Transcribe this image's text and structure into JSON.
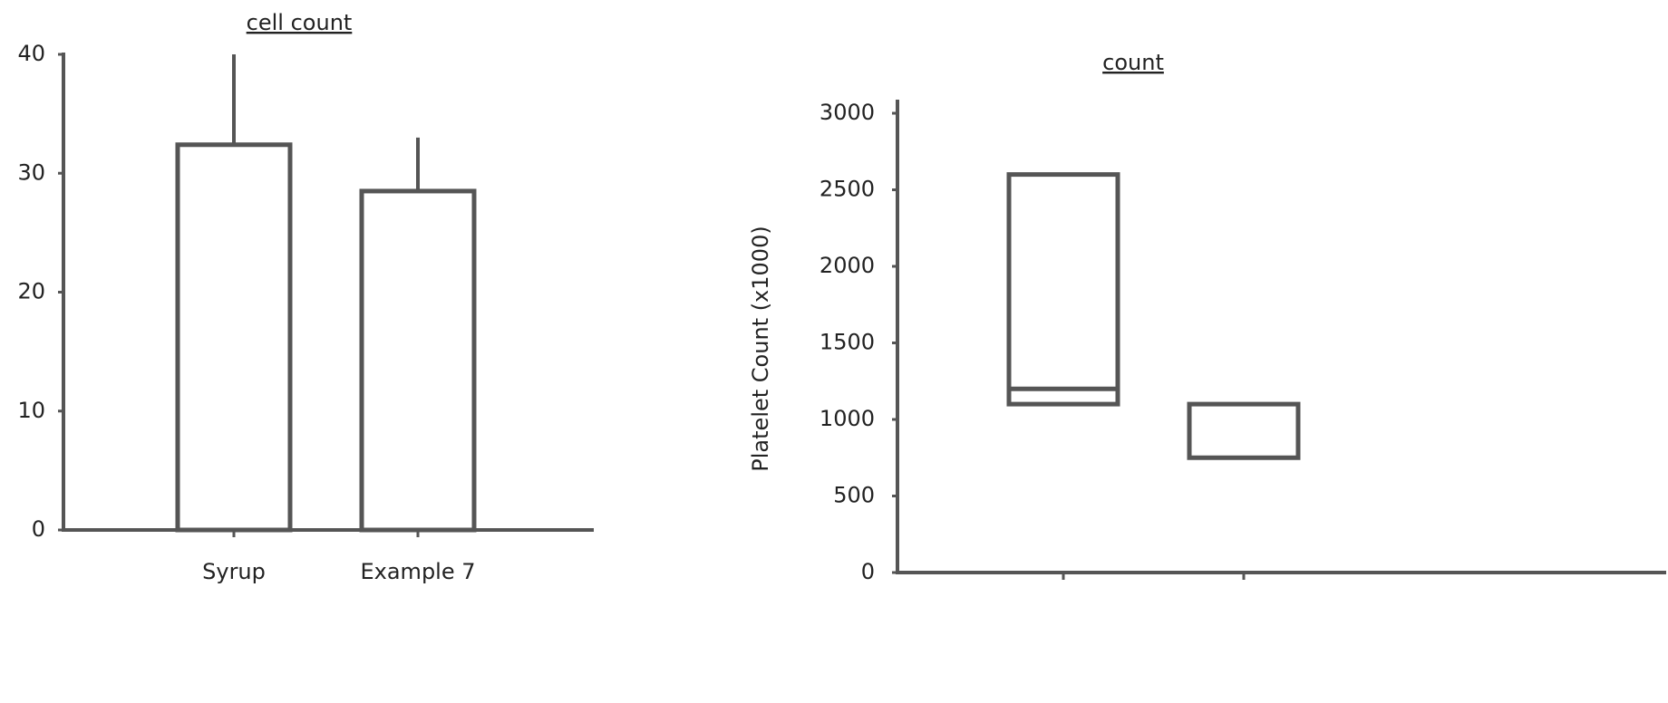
{
  "chart_data": [
    {
      "type": "bar",
      "title": "cell count",
      "categories": [
        "Syrup",
        "Example 7"
      ],
      "values": [
        32.4,
        28.5
      ],
      "errors": [
        7.6,
        4.5
      ],
      "ylim": [
        0,
        40
      ],
      "yticks": [
        0,
        10,
        20,
        30,
        40
      ],
      "color": "#ffffff"
    },
    {
      "type": "box",
      "title": "count",
      "y_label": "Platelet Count (x1000)",
      "categories": [
        null,
        null
      ],
      "low": [
        1100,
        750
      ],
      "median": [
        1200,
        null
      ],
      "high": [
        2600,
        1100
      ],
      "ylim": [
        0,
        3000
      ],
      "yticks": [
        0,
        500,
        1000,
        1500,
        2000,
        2500,
        3000
      ],
      "color": "#ffffff"
    }
  ]
}
